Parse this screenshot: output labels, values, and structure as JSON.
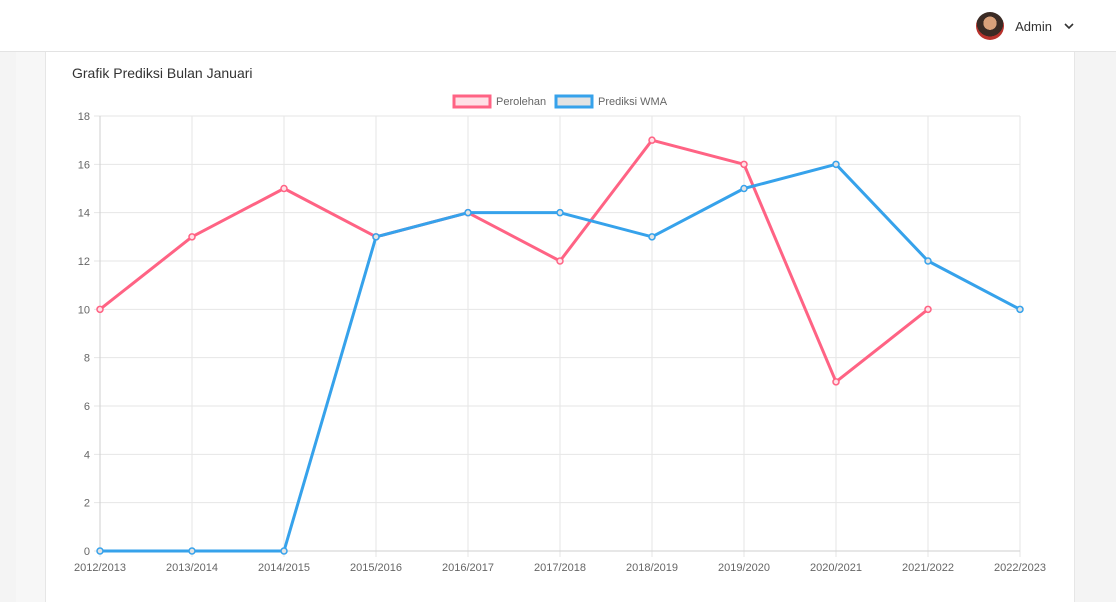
{
  "header": {
    "user_name": "Admin",
    "avatar_icon": "avatar",
    "menu_icon": "chevron-down-icon"
  },
  "card": {
    "title": "Grafik Prediksi Bulan Januari"
  },
  "chart_data": {
    "type": "line",
    "title": "",
    "xlabel": "",
    "ylabel": "",
    "categories": [
      "2012/2013",
      "2013/2014",
      "2014/2015",
      "2015/2016",
      "2016/2017",
      "2017/2018",
      "2018/2019",
      "2019/2020",
      "2020/2021",
      "2021/2022",
      "2022/2023"
    ],
    "ylim": [
      0,
      18
    ],
    "yticks": [
      0,
      2,
      4,
      6,
      8,
      10,
      12,
      14,
      16,
      18
    ],
    "grid": true,
    "legend_position": "top",
    "series": [
      {
        "name": "Perolehan",
        "color": "#ff6384",
        "fill": "#ffe0e6",
        "values": [
          10,
          13,
          15,
          13,
          14,
          12,
          17,
          16,
          7,
          10,
          null
        ]
      },
      {
        "name": "Prediksi WMA",
        "color": "#36a2eb",
        "fill": "#e3e3e3",
        "values": [
          0,
          0,
          0,
          13,
          14,
          14,
          13,
          15,
          16,
          12,
          10
        ]
      }
    ]
  }
}
